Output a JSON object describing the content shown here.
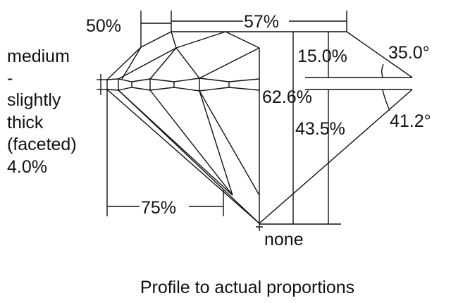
{
  "diagram": {
    "crown_height_label": "50%",
    "table_label": "57%",
    "girdle_lines": [
      "medium",
      "-",
      "slightly",
      "thick",
      "(faceted)",
      "4.0%"
    ],
    "crown_height_pct": "15.0%",
    "crown_angle": "35.0°",
    "total_depth": "62.6%",
    "pavilion_depth": "43.5%",
    "pavilion_angle": "41.2°",
    "lower_half_label": "75%",
    "culet": "none",
    "caption": "Profile to actual proportions"
  }
}
